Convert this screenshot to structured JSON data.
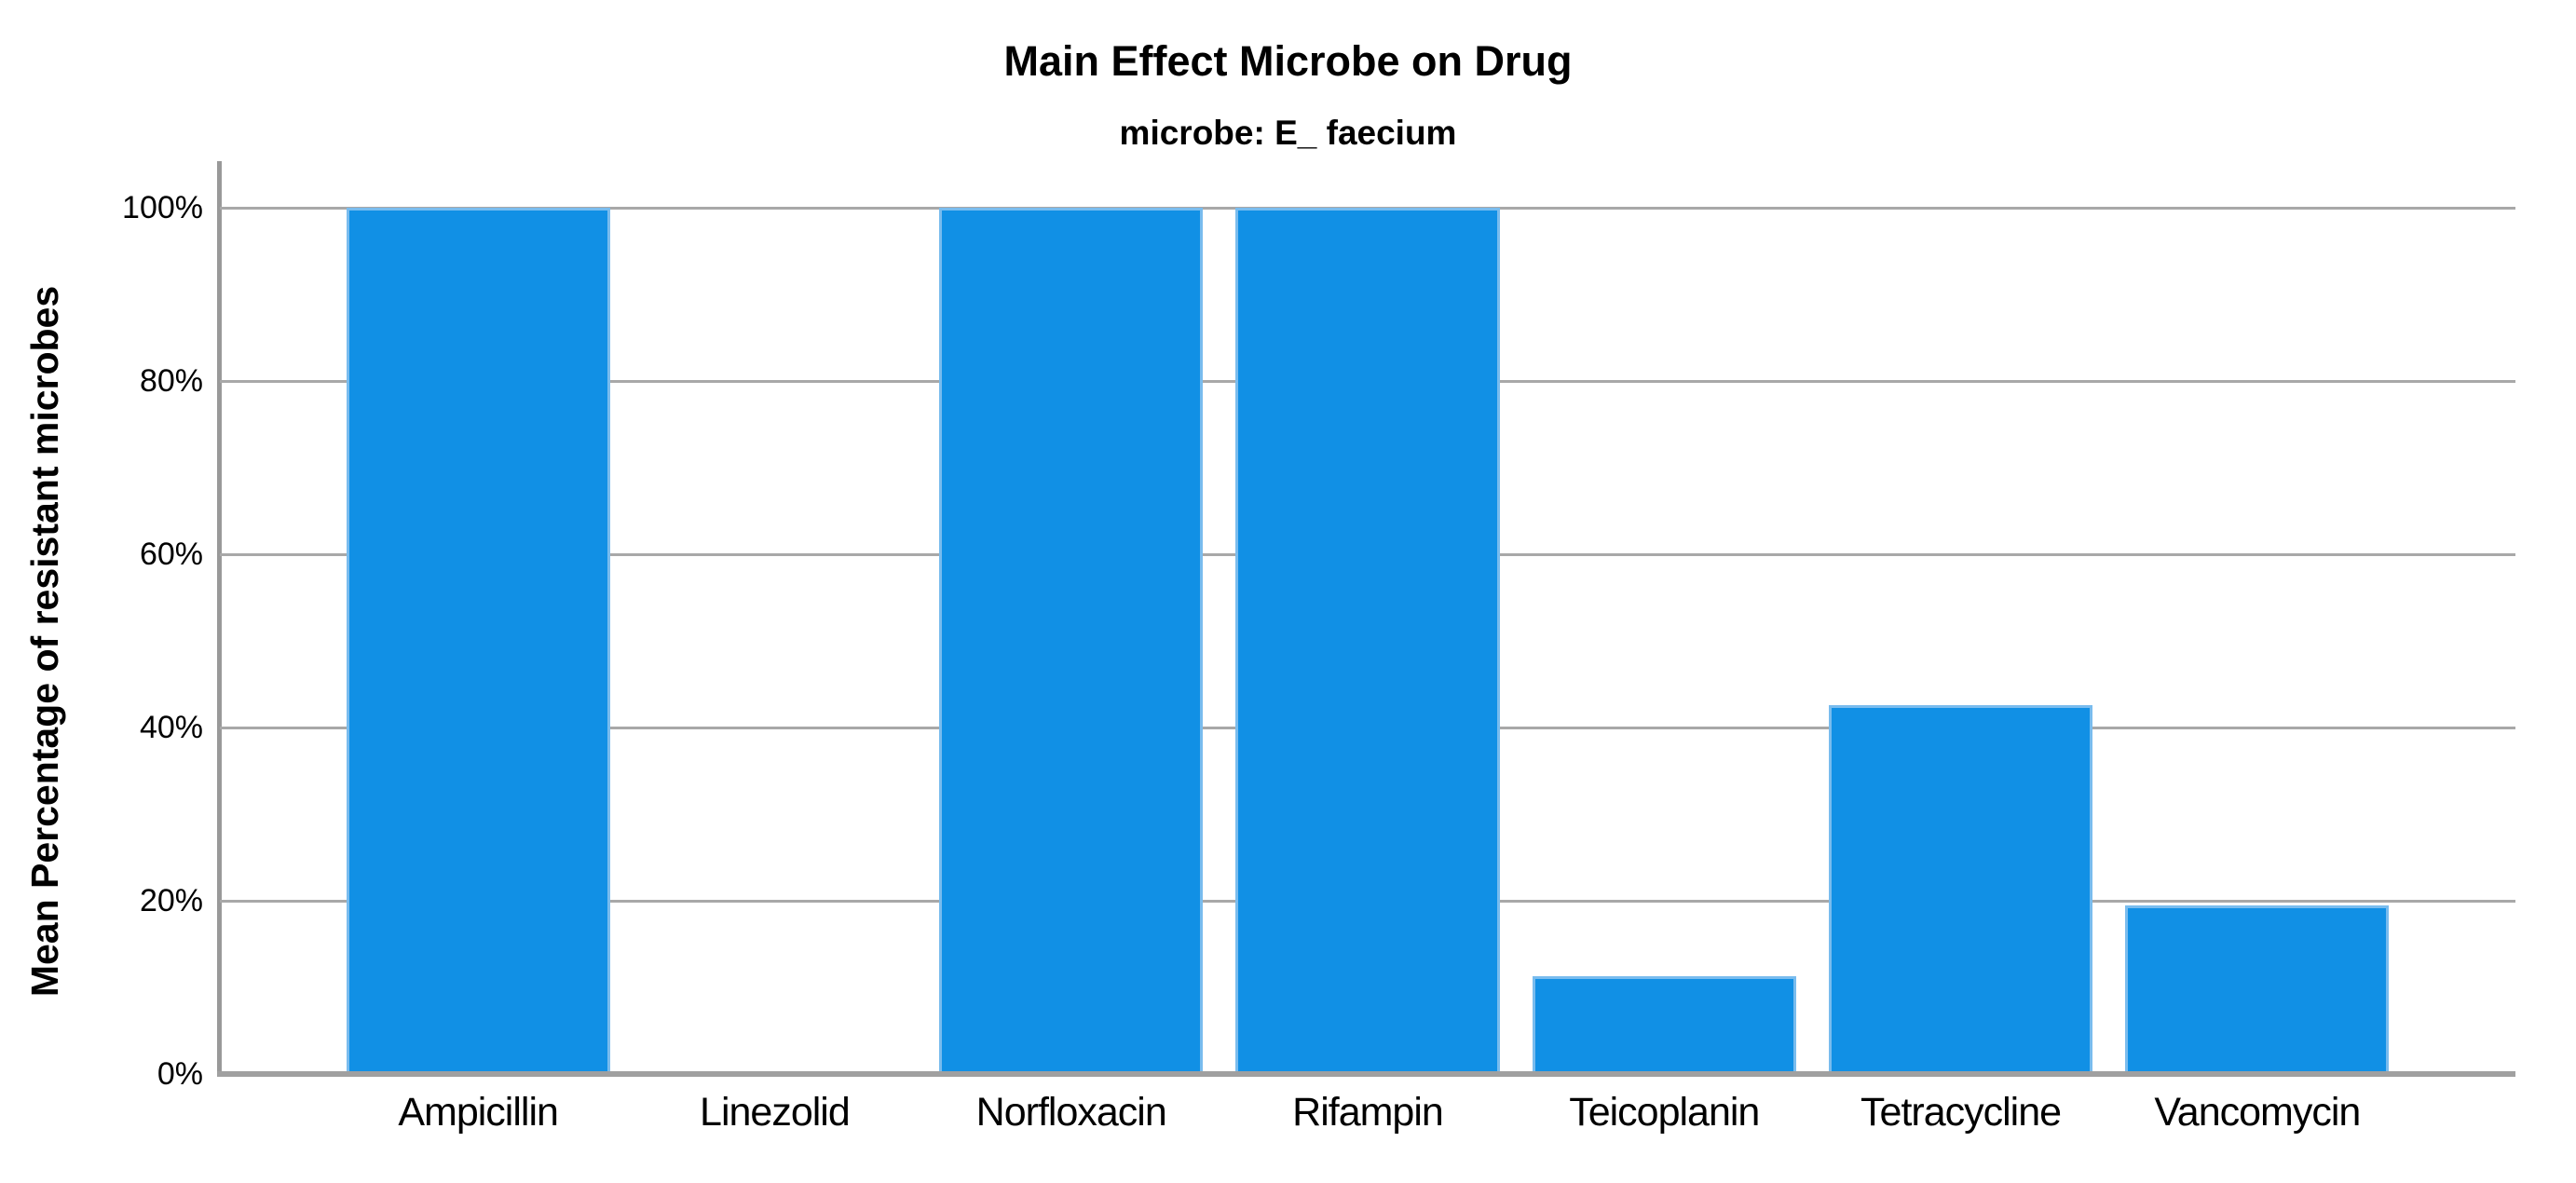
{
  "chart_data": {
    "type": "bar",
    "title": "Main Effect Microbe on Drug",
    "subtitle": "microbe: E_ faecium",
    "categories": [
      "Ampicillin",
      "Linezolid",
      "Norfloxacin",
      "Rifampin",
      "Teicoplanin",
      "Tetracycline",
      "Vancomycin"
    ],
    "values": [
      100,
      0,
      100,
      100,
      11.3,
      42.6,
      19.5
    ],
    "xlabel": "",
    "ylabel": "Mean Percentage of resistant microbes",
    "ylim": [
      0,
      100
    ],
    "yticks_percent": [
      0,
      20,
      40,
      60,
      80,
      100
    ],
    "ytick_suffix": "%",
    "grid": "horizontal",
    "legend_position": "none",
    "bar_color": "#1190e5",
    "bar_border_color": "#79bcee",
    "gridline_color": "#a8a8a8",
    "axis_color": "#9d9d9d"
  }
}
